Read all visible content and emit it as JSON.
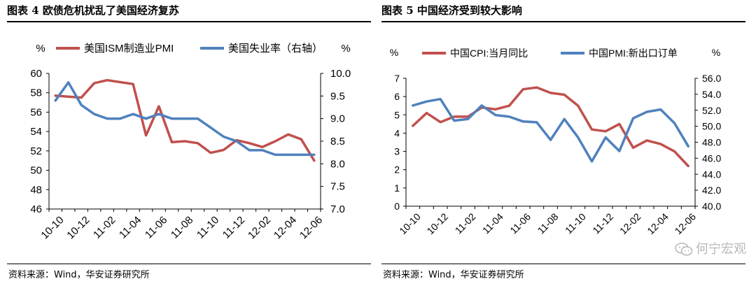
{
  "figures": [
    {
      "title": "图表 4  欧债危机扰乱了美国经济复苏",
      "source": "资料来源：Wind，华安证券研究所"
    },
    {
      "title": "图表 5  中国经济受到较大影响",
      "source": "资料来源：Wind，华安证券研究所"
    }
  ],
  "watermark": {
    "text": "何宁宏观",
    "icon": "wechat-icon"
  },
  "chart_data": [
    {
      "type": "line",
      "x": [
        "10-10",
        "10-11",
        "10-12",
        "11-01",
        "11-02",
        "11-03",
        "11-04",
        "11-05",
        "11-06",
        "11-07",
        "11-08",
        "11-09",
        "11-10",
        "11-11",
        "11-12",
        "12-01",
        "12-02",
        "12-03",
        "12-04",
        "12-05",
        "12-06"
      ],
      "x_tick_labels": [
        "10-10",
        "10-12",
        "11-02",
        "11-04",
        "11-06",
        "11-08",
        "11-10",
        "11-12",
        "12-02",
        "12-04",
        "12-06"
      ],
      "y_left": {
        "unit": "%",
        "range": [
          46,
          60
        ],
        "ticks": [
          "46",
          "48",
          "50",
          "52",
          "54",
          "56",
          "58",
          "60"
        ]
      },
      "y_right": {
        "unit": "%",
        "range": [
          7.0,
          10.0
        ],
        "ticks": [
          "7.0",
          "7.5",
          "8.0",
          "8.5",
          "9.0",
          "9.5",
          "10.0"
        ]
      },
      "series": [
        {
          "name": "美国ISM制造业PMI",
          "axis": "left",
          "color": "#c0504d",
          "values": [
            57.7,
            57.6,
            57.5,
            59.0,
            59.3,
            59.1,
            58.9,
            53.6,
            56.6,
            52.9,
            53.0,
            52.8,
            51.8,
            52.1,
            53.1,
            52.8,
            52.4,
            53.0,
            53.7,
            53.2,
            51.0
          ]
        },
        {
          "name": "美国失业率（右轴）",
          "axis": "right",
          "color": "#4f81bd",
          "values": [
            9.4,
            9.8,
            9.3,
            9.1,
            9.0,
            9.0,
            9.1,
            9.0,
            9.1,
            9.0,
            9.0,
            9.0,
            8.8,
            8.6,
            8.5,
            8.3,
            8.3,
            8.2,
            8.2,
            8.2,
            8.2
          ]
        }
      ]
    },
    {
      "type": "line",
      "x": [
        "10-10",
        "10-11",
        "10-12",
        "11-01",
        "11-02",
        "11-03",
        "11-04",
        "11-05",
        "11-06",
        "11-07",
        "11-08",
        "11-09",
        "11-10",
        "11-11",
        "11-12",
        "12-01",
        "12-02",
        "12-03",
        "12-04",
        "12-05",
        "12-06"
      ],
      "x_tick_labels": [
        "10-10",
        "10-12",
        "11-02",
        "11-04",
        "11-06",
        "11-08",
        "11-10",
        "11-12",
        "12-02",
        "12-04",
        "12-06"
      ],
      "y_left": {
        "unit": "%",
        "range": [
          0,
          7
        ],
        "ticks": [
          "0",
          "1",
          "2",
          "3",
          "4",
          "5",
          "6",
          "7"
        ]
      },
      "y_right": {
        "unit": "%",
        "range": [
          40.0,
          56.0
        ],
        "ticks": [
          "40.0",
          "42.0",
          "44.0",
          "46.0",
          "48.0",
          "50.0",
          "52.0",
          "54.0",
          "56.0"
        ]
      },
      "series": [
        {
          "name": "中国CPI:当月同比",
          "axis": "left",
          "color": "#c0504d",
          "values": [
            4.4,
            5.1,
            4.6,
            4.9,
            4.9,
            5.4,
            5.3,
            5.5,
            6.4,
            6.5,
            6.2,
            6.1,
            5.5,
            4.2,
            4.1,
            4.5,
            3.2,
            3.6,
            3.4,
            3.0,
            2.2
          ]
        },
        {
          "name": "中国PMI:新出口订单",
          "axis": "right",
          "color": "#4f81bd",
          "values": [
            52.6,
            53.1,
            53.4,
            50.7,
            50.9,
            52.6,
            51.4,
            51.2,
            50.6,
            50.5,
            48.3,
            50.9,
            48.6,
            45.6,
            48.6,
            46.9,
            51.0,
            51.8,
            52.1,
            50.4,
            47.5
          ]
        }
      ]
    }
  ]
}
